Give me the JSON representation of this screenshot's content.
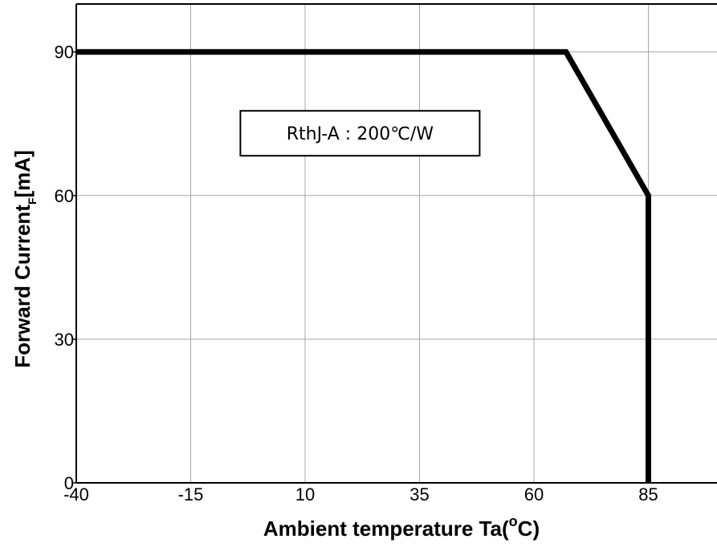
{
  "chart_data": {
    "type": "line",
    "xlabel": "Ambient temperature Ta(",
    "xlabel_unit_degree": "o",
    "xlabel_unit_tail": "C)",
    "ylabel": "Forward Current",
    "ylabel_subscript": "F",
    "ylabel_unit": "[mA]",
    "xlim": [
      -40,
      100
    ],
    "ylim": [
      0,
      100
    ],
    "x_ticks": [
      -40,
      -15,
      10,
      35,
      60,
      85
    ],
    "x_tick_labels": [
      "-40",
      "-15",
      "10",
      "35",
      "60",
      "85"
    ],
    "y_ticks": [
      0,
      30,
      60,
      90
    ],
    "y_tick_labels": [
      "0",
      "30",
      "60",
      "90"
    ],
    "grid": true,
    "series": [
      {
        "x": [
          -40,
          67,
          85,
          85
        ],
        "y": [
          90,
          90,
          60,
          0
        ],
        "color": "#000000"
      }
    ],
    "annotations": [
      {
        "text": "RthJ-A : 200℃/W",
        "x": 22,
        "y": 73
      }
    ]
  }
}
